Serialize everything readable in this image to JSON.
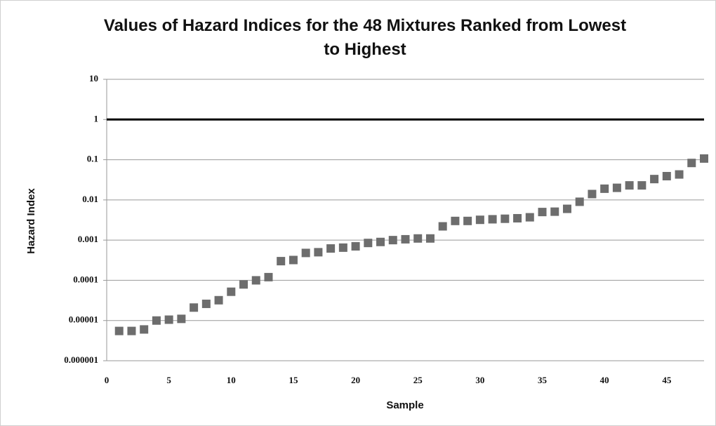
{
  "chart_data": {
    "type": "scatter",
    "title": "Values of Hazard Indices for the 48 Mixtures Ranked from Lowest to Highest",
    "x_label": "Sample",
    "y_label": "Hazard Index",
    "x": [
      1,
      2,
      3,
      4,
      5,
      6,
      7,
      8,
      9,
      10,
      11,
      12,
      13,
      14,
      15,
      16,
      17,
      18,
      19,
      20,
      21,
      22,
      23,
      24,
      25,
      26,
      27,
      28,
      29,
      30,
      31,
      32,
      33,
      34,
      35,
      36,
      37,
      38,
      39,
      40,
      41,
      42,
      43,
      44,
      45,
      46,
      47,
      48
    ],
    "values": [
      5.5e-06,
      5.5e-06,
      6e-06,
      1e-05,
      1.05e-05,
      1.1e-05,
      2.1e-05,
      2.6e-05,
      3.2e-05,
      5.2e-05,
      7.9e-05,
      0.0001,
      0.00012,
      0.0003,
      0.00032,
      0.00048,
      0.0005,
      0.00062,
      0.00065,
      0.0007,
      0.00085,
      0.0009,
      0.001,
      0.00105,
      0.0011,
      0.0011,
      0.0022,
      0.003,
      0.003,
      0.0032,
      0.0033,
      0.0034,
      0.0035,
      0.0037,
      0.005,
      0.0051,
      0.006,
      0.009,
      0.014,
      0.019,
      0.02,
      0.023,
      0.023,
      0.033,
      0.039,
      0.043,
      0.083,
      0.107
    ],
    "color": "#6d6d6d",
    "xlim": [
      0,
      48
    ],
    "xticks": [
      0,
      5,
      10,
      15,
      20,
      25,
      30,
      35,
      40,
      45
    ],
    "ylim": [
      1e-06,
      10
    ],
    "yticks": [
      10,
      1,
      0.1,
      0.01,
      0.001,
      0.0001,
      1e-05,
      1e-06
    ],
    "log_y": true,
    "grid": true,
    "reference_line": 1
  }
}
